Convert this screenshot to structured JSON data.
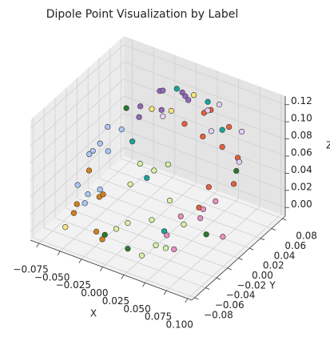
{
  "chart_data": {
    "type": "scatter3d",
    "title": "Dipole Point Visualization by Label",
    "xlabel": "X",
    "ylabel": "Y",
    "zlabel": "Z",
    "xlim": [
      -0.085,
      0.105
    ],
    "ylim": [
      -0.085,
      0.085
    ],
    "zlim": [
      -0.01,
      0.13
    ],
    "xticks": [
      {
        "value": -0.075,
        "label": "−0.075"
      },
      {
        "value": -0.05,
        "label": "−0.050"
      },
      {
        "value": -0.025,
        "label": "−0.025"
      },
      {
        "value": 0,
        "label": "0.000"
      },
      {
        "value": 0.025,
        "label": "0.025"
      },
      {
        "value": 0.05,
        "label": "0.050"
      },
      {
        "value": 0.075,
        "label": "0.075"
      },
      {
        "value": 0.1,
        "label": "0.100"
      }
    ],
    "yticks": [
      {
        "value": -0.08,
        "label": "−0.08"
      },
      {
        "value": -0.06,
        "label": "−0.06"
      },
      {
        "value": -0.04,
        "label": "−0.04"
      },
      {
        "value": -0.02,
        "label": "−0.02"
      },
      {
        "value": 0,
        "label": "0.00"
      },
      {
        "value": 0.02,
        "label": "0.02"
      },
      {
        "value": 0.04,
        "label": "0.04"
      },
      {
        "value": 0.06,
        "label": "0.06"
      },
      {
        "value": 0.08,
        "label": "0.08"
      }
    ],
    "zticks": [
      {
        "value": 0,
        "label": "0.00"
      },
      {
        "value": 0.02,
        "label": "0.02"
      },
      {
        "value": 0.04,
        "label": "0.04"
      },
      {
        "value": 0.06,
        "label": "0.06"
      },
      {
        "value": 0.08,
        "label": "0.08"
      },
      {
        "value": 0.1,
        "label": "0.10"
      },
      {
        "value": 0.12,
        "label": "0.12"
      }
    ],
    "grid": true,
    "series": [
      {
        "color": "#9467bd",
        "x": [
          -0.03,
          -0.02,
          -0.01,
          0.0,
          0.01,
          -0.025,
          0.02,
          -0.005
        ],
        "y": [
          0.03,
          0.05,
          0.04,
          0.06,
          0.05,
          0.02,
          0.04,
          0.03
        ],
        "z": [
          0.1,
          0.11,
          0.12,
          0.11,
          0.115,
          0.095,
          0.12,
          0.105
        ]
      },
      {
        "color": "#e8603c",
        "x": [
          0.05,
          0.06,
          0.07,
          0.04,
          0.08,
          0.055,
          0.065,
          0.045,
          0.075,
          0.035
        ],
        "y": [
          0.02,
          0.04,
          0.0,
          0.05,
          0.03,
          0.06,
          -0.01,
          0.03,
          0.045,
          0.01
        ],
        "z": [
          0.1,
          0.08,
          0.06,
          0.11,
          0.05,
          0.09,
          0.04,
          0.12,
          0.07,
          0.115
        ]
      },
      {
        "color": "#e6cff5",
        "x": [
          0.05,
          0.07,
          0.06,
          -0.01,
          0.03,
          0.08
        ],
        "y": [
          0.05,
          0.06,
          0.02,
          0.04,
          0.06,
          0.04
        ],
        "z": [
          0.12,
          0.09,
          0.11,
          0.09,
          0.1,
          0.07
        ]
      },
      {
        "color": "#17a59c",
        "x": [
          0.0,
          0.03,
          -0.02,
          0.06,
          0.05,
          0.01
        ],
        "y": [
          0.05,
          0.06,
          0.0,
          0.04,
          -0.05,
          -0.02
        ],
        "z": [
          0.12,
          0.11,
          0.08,
          0.1,
          0.03,
          0.06
        ]
      },
      {
        "color": "#a9c9f5",
        "x": [
          -0.065,
          -0.06,
          -0.055,
          -0.05,
          -0.062,
          -0.045,
          -0.058,
          -0.04,
          -0.052,
          -0.048
        ],
        "y": [
          -0.03,
          -0.01,
          0.01,
          -0.04,
          0.02,
          -0.02,
          0.0,
          -0.05,
          0.03,
          -0.035
        ],
        "z": [
          0.03,
          0.06,
          0.05,
          0.02,
          0.07,
          0.08,
          0.01,
          0.04,
          0.065,
          0.075
        ]
      },
      {
        "color": "#d4801e",
        "x": [
          -0.05,
          -0.04,
          -0.03,
          -0.02,
          -0.045,
          -0.01,
          -0.035
        ],
        "y": [
          -0.06,
          -0.07,
          -0.05,
          -0.06,
          -0.04,
          -0.07,
          -0.03
        ],
        "z": [
          0.02,
          0.04,
          0.0,
          0.05,
          0.06,
          0.01,
          0.03
        ]
      },
      {
        "color": "#e890bd",
        "x": [
          0.04,
          0.05,
          0.06,
          0.07,
          0.08,
          0.055,
          0.065
        ],
        "y": [
          -0.03,
          -0.02,
          0.0,
          -0.01,
          0.01,
          -0.04,
          0.02
        ],
        "z": [
          0.01,
          0.03,
          0.02,
          0.04,
          0.0,
          0.005,
          0.03
        ]
      },
      {
        "color": "#d6f2a4",
        "x": [
          0.0,
          0.02,
          0.04,
          0.05,
          0.01,
          0.03,
          0.06,
          0.015,
          0.045,
          0.025,
          0.035,
          0.055
        ],
        "y": [
          -0.06,
          -0.07,
          -0.05,
          -0.04,
          -0.05,
          -0.06,
          -0.03,
          -0.04,
          -0.065,
          -0.03,
          -0.02,
          -0.055
        ],
        "z": [
          0.02,
          0.04,
          0.01,
          0.06,
          0.07,
          0.0,
          0.03,
          0.09,
          0.05,
          0.08,
          0.085,
          0.015
        ]
      },
      {
        "color": "#2b7a2b",
        "x": [
          -0.04,
          0.02,
          0.07,
          0.08,
          -0.02
        ],
        "y": [
          0.02,
          -0.07,
          0.05,
          -0.02,
          -0.05
        ],
        "z": [
          0.1,
          0.01,
          0.05,
          0.02,
          0.0
        ]
      },
      {
        "color": "#f7e37a",
        "x": [
          -0.01,
          0.0,
          -0.06,
          0.02
        ],
        "y": [
          0.02,
          0.04,
          -0.06,
          0.05
        ],
        "z": [
          0.11,
          0.1,
          0.0,
          0.12
        ]
      }
    ]
  }
}
